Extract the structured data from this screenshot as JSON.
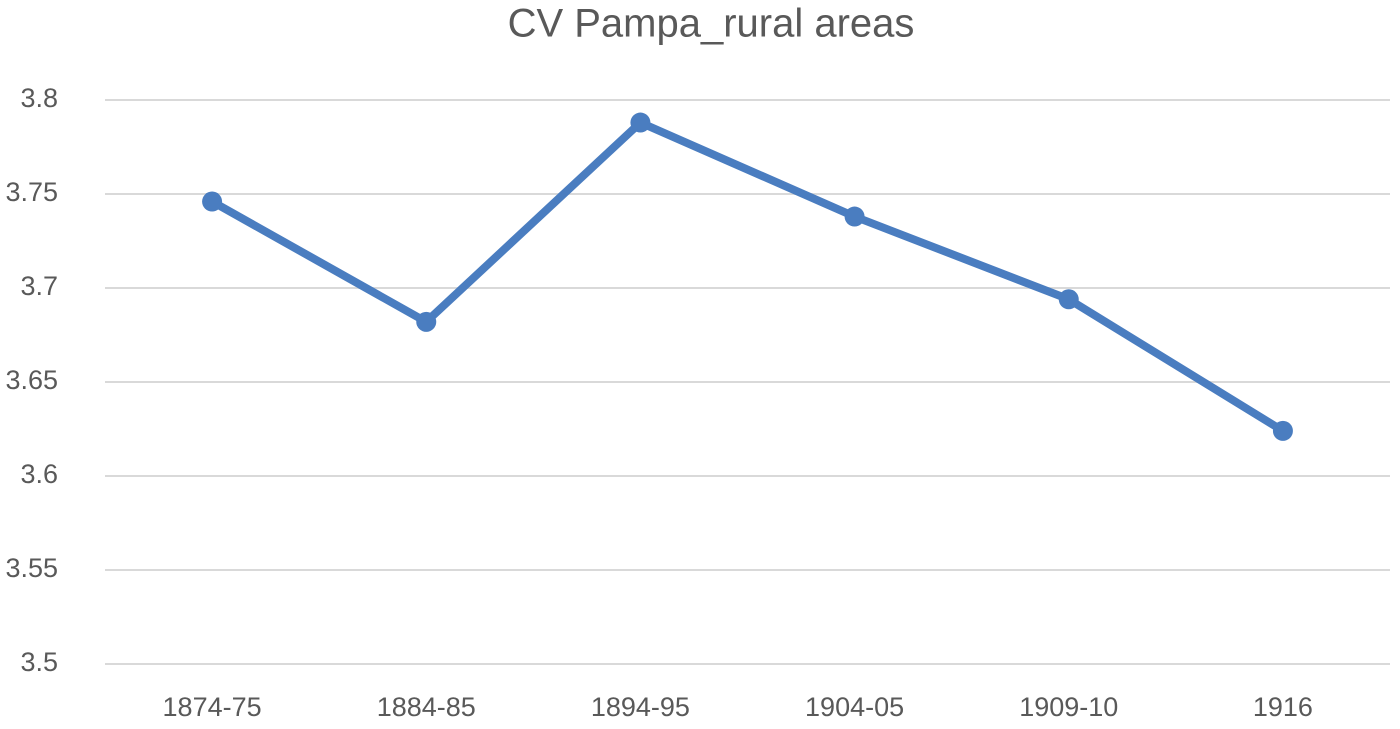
{
  "chart_data": {
    "type": "line",
    "title": "CV Pampa_rural areas",
    "categories": [
      "1874-75",
      "1884-85",
      "1894-95",
      "1904-05",
      "1909-10",
      "1916"
    ],
    "series": [
      {
        "name": "CV Pampa_rural areas",
        "color": "#4a7dc0",
        "values": [
          3.746,
          3.682,
          3.788,
          3.738,
          3.694,
          3.624
        ]
      }
    ],
    "ylim": [
      3.5,
      3.8
    ],
    "yticks": [
      3.5,
      3.55,
      3.6,
      3.65,
      3.7,
      3.75,
      3.8
    ],
    "grid": true
  }
}
